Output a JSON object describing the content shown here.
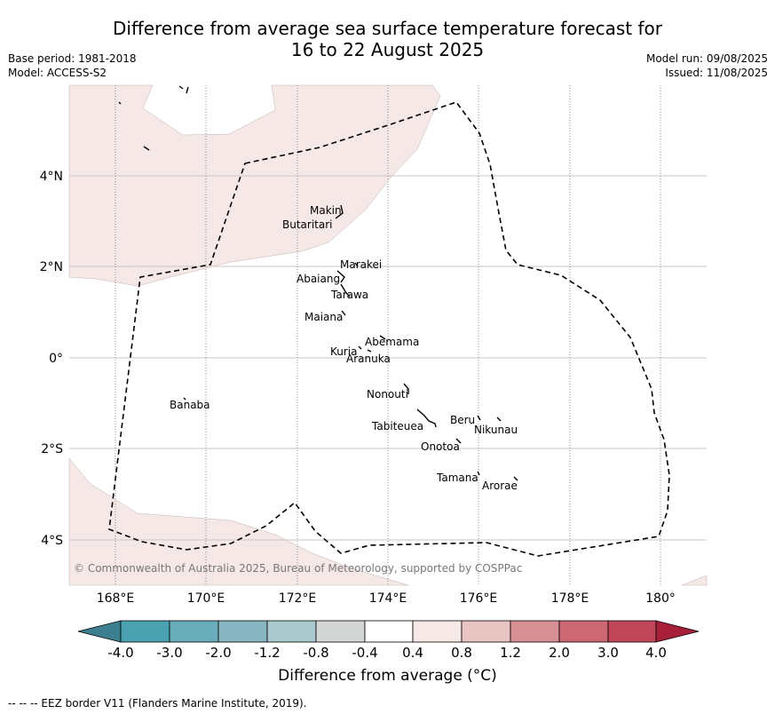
{
  "title_line1": "Difference from average sea surface temperature forecast for",
  "title_line2": "16 to 22 August 2025",
  "base_period": "Base period: 1981-2018",
  "model": "Model: ACCESS-S2",
  "model_run": "Model run: 09/08/2025",
  "issued": "Issued: 11/08/2025",
  "copyright": "© Commonwealth of Australia 2025, Bureau of Meteorology, supported by COSPPac",
  "colorbar_title": "Difference from average (°C)",
  "footnote": "--  --  -- EEZ border V11 (Flanders Marine Institute, 2019).",
  "lat_labels": [
    {
      "lat": 4,
      "text": "4°N"
    },
    {
      "lat": 2,
      "text": "2°N"
    },
    {
      "lat": 0,
      "text": "0°"
    },
    {
      "lat": -2,
      "text": "2°S"
    },
    {
      "lat": -4,
      "text": "4°S"
    }
  ],
  "lon_labels": [
    {
      "lon": 168,
      "text": "168°E"
    },
    {
      "lon": 170,
      "text": "170°E"
    },
    {
      "lon": 172,
      "text": "172°E"
    },
    {
      "lon": 174,
      "text": "174°E"
    },
    {
      "lon": 176,
      "text": "176°E"
    },
    {
      "lon": 178,
      "text": "178°E"
    },
    {
      "lon": 180,
      "text": "180°"
    }
  ],
  "islands": [
    {
      "name": "Makin",
      "lon": 172.9,
      "lat": 3.2
    },
    {
      "name": "Butaritari",
      "lon": 172.85,
      "lat": 3.1
    },
    {
      "name": "Marakei",
      "lon": 173.3,
      "lat": 2.0
    },
    {
      "name": "Abaiang",
      "lon": 173.0,
      "lat": 1.8
    },
    {
      "name": "Tarawa",
      "lon": 173.0,
      "lat": 1.4
    },
    {
      "name": "Maiana",
      "lon": 173.0,
      "lat": 0.95
    },
    {
      "name": "Abemama",
      "lon": 173.85,
      "lat": 0.4
    },
    {
      "name": "Kuria",
      "lon": 173.4,
      "lat": 0.22
    },
    {
      "name": "Aranuka",
      "lon": 173.6,
      "lat": 0.15
    },
    {
      "name": "Banaba",
      "lon": 169.5,
      "lat": -0.86
    },
    {
      "name": "Nonouti",
      "lon": 174.4,
      "lat": -0.65
    },
    {
      "name": "Tabiteuea",
      "lon": 174.9,
      "lat": -1.3
    },
    {
      "name": "Beru",
      "lon": 176.0,
      "lat": -1.35
    },
    {
      "name": "Nikunau",
      "lon": 176.45,
      "lat": -1.35
    },
    {
      "name": "Onotoa",
      "lon": 175.55,
      "lat": -1.8
    },
    {
      "name": "Tamana",
      "lon": 175.95,
      "lat": -2.5
    },
    {
      "name": "Arorae",
      "lon": 176.8,
      "lat": -2.65
    }
  ],
  "map_extent": {
    "lon_min": 167,
    "lon_max": 181,
    "lat_min": -5,
    "lat_max": 6
  },
  "colorbar": {
    "labels": [
      "-4.0",
      "-3.0",
      "-2.0",
      "-1.2",
      "-0.8",
      "-0.4",
      "0.4",
      "0.8",
      "1.2",
      "2.0",
      "3.0",
      "4.0"
    ],
    "colors": [
      "#3b7f90",
      "#4aa1b0",
      "#6aadba",
      "#88b7c1",
      "#a9c9ce",
      "#d4d6d6",
      "#ffffff",
      "#f5e8e6",
      "#e8c5c2",
      "#d58f95",
      "#cb6872",
      "#c04757",
      "#a81f3a"
    ],
    "land_anomaly_color": "#f5e8e6"
  }
}
